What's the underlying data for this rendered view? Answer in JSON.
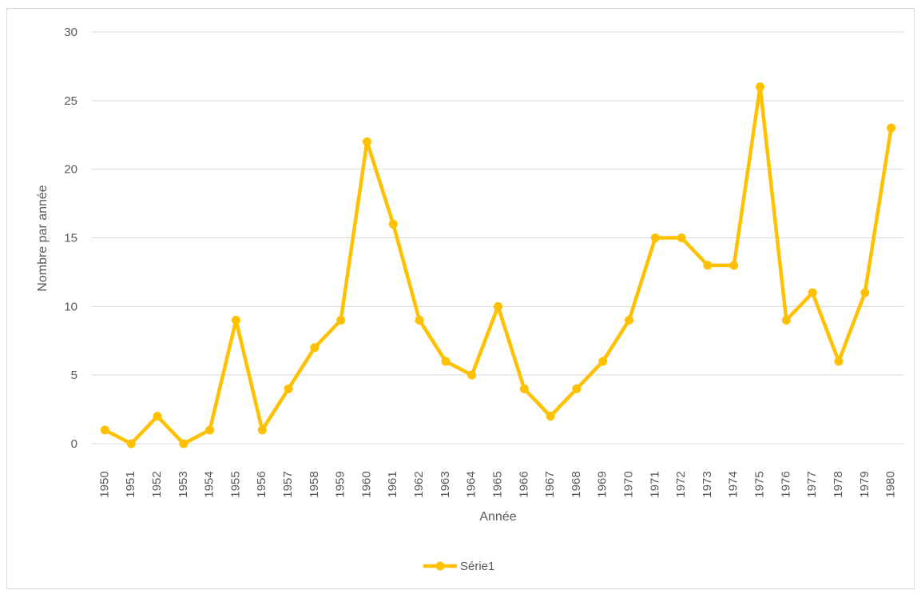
{
  "chart_data": {
    "type": "line",
    "title": "",
    "xlabel": "Année",
    "ylabel": "Nombre par année",
    "ylim": [
      0,
      30
    ],
    "yticks": [
      0,
      5,
      10,
      15,
      20,
      25,
      30
    ],
    "grid": true,
    "legend_position": "bottom",
    "categories": [
      "1950",
      "1951",
      "1952",
      "1953",
      "1954",
      "1955",
      "1956",
      "1957",
      "1958",
      "1959",
      "1960",
      "1961",
      "1962",
      "1963",
      "1964",
      "1965",
      "1966",
      "1967",
      "1968",
      "1969",
      "1970",
      "1971",
      "1972",
      "1973",
      "1974",
      "1975",
      "1976",
      "1977",
      "1978",
      "1979",
      "1980"
    ],
    "series": [
      {
        "name": "Série1",
        "color": "#FFC000",
        "values": [
          1,
          0,
          2,
          0,
          1,
          9,
          1,
          4,
          7,
          9,
          22,
          16,
          9,
          6,
          5,
          10,
          4,
          2,
          4,
          6,
          9,
          15,
          15,
          13,
          13,
          26,
          9,
          11,
          6,
          11,
          23
        ]
      }
    ]
  }
}
